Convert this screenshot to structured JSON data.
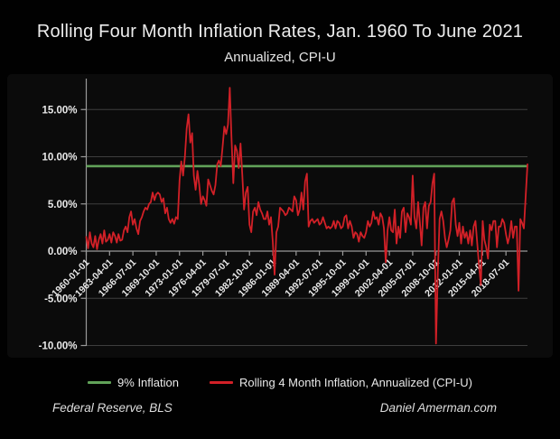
{
  "header": {
    "title": "Rolling Four Month Inflation Rates, Jan. 1960 To June 2021",
    "subtitle": "Annualized, CPI-U"
  },
  "legend": {
    "items": [
      {
        "label": "9% Inflation",
        "color": "#61a259"
      },
      {
        "label": "Rolling 4 Month Inflation, Annualized  (CPI-U)",
        "color": "#d22027"
      }
    ]
  },
  "footer": {
    "left": "Federal Reserve, BLS",
    "right": "Daniel Amerman.com"
  },
  "colors": {
    "background": "#010101",
    "panel": "#0b0b0b",
    "grid": "#3e3e3e",
    "axis": "#9a9a9a",
    "text": "#e9e9e9",
    "green_line": "#61a259",
    "red_line": "#d22027"
  },
  "chart_data": {
    "type": "line",
    "title": "Rolling Four Month Inflation Rates, Jan. 1960 To June 2021",
    "subtitle": "Annualized, CPI-U",
    "grid": true,
    "legend_position": "bottom",
    "x_axis": {
      "start_year": 1960.0,
      "end_year": 2021.5,
      "tick_interval_years": 3.25,
      "tick_labels": [
        "1960-01-01",
        "1963-04-01",
        "1966-07-01",
        "1969-10-01",
        "1973-01-01",
        "1976-04-01",
        "1979-07-01",
        "1982-10-01",
        "1986-01-01",
        "1989-04-01",
        "1992-07-01",
        "1995-10-01",
        "1999-01-01",
        "2002-04-01",
        "2005-07-01",
        "2008-10-01",
        "2012-01-01",
        "2015-04-01",
        "2018-07-01"
      ]
    },
    "y_axis": {
      "min": -10.4,
      "max": 18.3,
      "unit": "%",
      "ticks": [
        15,
        10,
        5,
        0,
        -5,
        -10
      ],
      "tick_labels": [
        "15.00%",
        "10.00%",
        "5.00%",
        "0.00%",
        "-5.00%",
        "-10.00%"
      ]
    },
    "series": [
      {
        "name": "9% Inflation",
        "type": "horizontal-line",
        "value": 9,
        "color": "#61a259"
      },
      {
        "name": "Rolling 4 Month Inflation, Annualized (CPI-U)",
        "type": "line",
        "color": "#d22027",
        "x_start": 1960.0,
        "x_step": 0.25,
        "values": [
          1.5,
          0.3,
          2.0,
          0.8,
          0.4,
          1.6,
          0.2,
          1.2,
          1.8,
          0.8,
          2.2,
          1.0,
          1.2,
          1.8,
          0.9,
          2.0,
          1.6,
          0.9,
          1.8,
          1.1,
          1.2,
          2.2,
          2.6,
          2.0,
          3.6,
          4.2,
          2.8,
          3.4,
          2.4,
          1.8,
          3.2,
          3.6,
          4.2,
          4.6,
          4.4,
          5.0,
          5.2,
          6.2,
          5.4,
          6.0,
          6.2,
          6.0,
          5.2,
          5.6,
          4.0,
          4.6,
          3.4,
          3.0,
          3.4,
          2.9,
          3.6,
          3.4,
          7.5,
          9.5,
          8.0,
          10.0,
          13.0,
          14.5,
          11.5,
          12.5,
          8.0,
          6.5,
          8.5,
          7.0,
          5.0,
          5.8,
          5.4,
          4.8,
          7.6,
          7.0,
          6.4,
          6.0,
          7.0,
          9.2,
          9.6,
          9.0,
          11.0,
          13.2,
          12.4,
          13.4,
          17.3,
          12.0,
          7.2,
          11.2,
          10.6,
          8.8,
          11.4,
          8.0,
          4.4,
          6.2,
          6.8,
          2.8,
          2.0,
          4.2,
          4.6,
          3.8,
          5.2,
          4.4,
          4.0,
          3.4,
          3.4,
          4.2,
          2.8,
          3.6,
          1.0,
          -2.5,
          2.0,
          2.6,
          4.6,
          4.4,
          4.2,
          3.8,
          4.0,
          4.6,
          4.4,
          4.2,
          5.8,
          5.4,
          3.8,
          4.4,
          6.2,
          4.4,
          7.4,
          8.2,
          2.6,
          3.2,
          3.4,
          3.0,
          3.2,
          3.4,
          2.8,
          3.0,
          3.6,
          3.0,
          2.4,
          2.6,
          2.4,
          2.6,
          3.2,
          2.4,
          3.2,
          3.0,
          2.4,
          2.6,
          3.6,
          3.8,
          2.4,
          3.2,
          2.6,
          1.4,
          2.0,
          1.8,
          1.0,
          2.0,
          1.6,
          1.4,
          2.0,
          3.2,
          2.6,
          3.0,
          4.2,
          3.4,
          3.6,
          2.8,
          4.0,
          3.6,
          2.4,
          -1.2,
          2.2,
          3.6,
          2.2,
          2.0,
          4.4,
          0.8,
          2.6,
          1.4,
          4.2,
          4.6,
          2.0,
          4.0,
          3.6,
          2.8,
          8.0,
          3.6,
          2.4,
          5.2,
          3.0,
          0.6,
          4.6,
          5.2,
          2.4,
          4.8,
          5.2,
          7.2,
          8.2,
          -9.8,
          -2.4,
          3.4,
          4.2,
          3.2,
          1.4,
          0.4,
          1.2,
          2.2,
          5.2,
          5.6,
          2.8,
          1.6,
          3.0,
          0.8,
          2.6,
          1.4,
          2.0,
          0.8,
          2.2,
          0.6,
          2.6,
          3.2,
          0.8,
          -1.6,
          -3.6,
          3.2,
          1.2,
          0.4,
          -0.8,
          2.8,
          2.2,
          3.2,
          3.2,
          0.4,
          2.6,
          2.6,
          3.4,
          3.0,
          1.8,
          0.8,
          1.6,
          3.2,
          1.4,
          2.6,
          2.6,
          -4.2,
          3.4,
          3.0,
          2.4,
          5.8,
          9.2
        ]
      }
    ]
  }
}
